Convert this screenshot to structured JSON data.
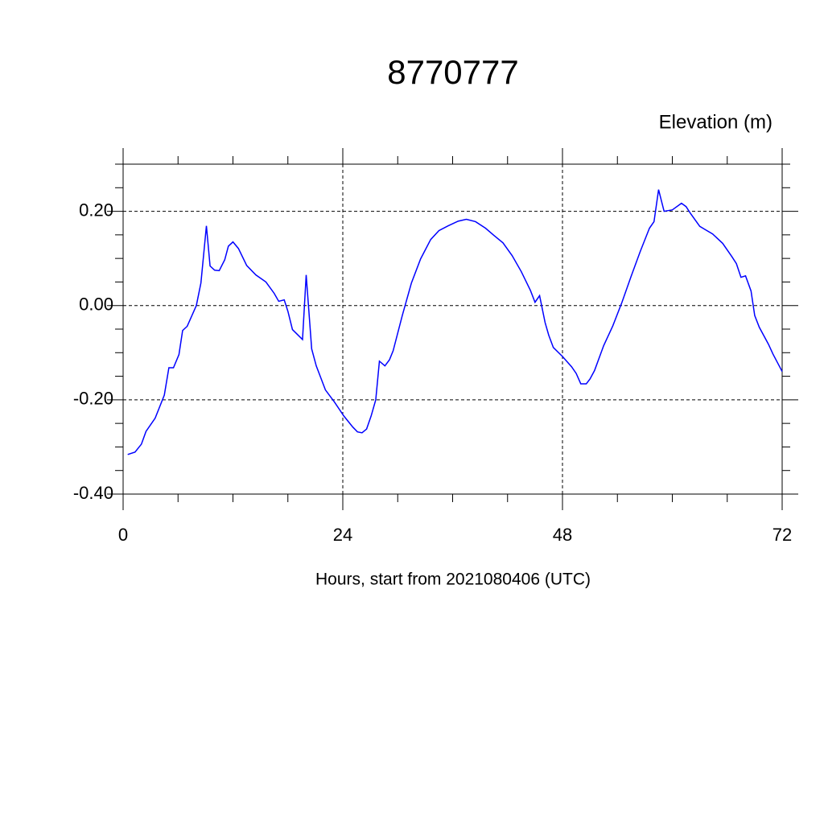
{
  "chart_data": {
    "type": "line",
    "title": "8770777",
    "ylabel": "Elevation (m)",
    "xlabel": "Hours, start from 2021080406 (UTC)",
    "color": "#0000ff",
    "grid": true,
    "xlim": [
      0,
      72
    ],
    "ylim": [
      -0.4,
      0.3
    ],
    "xticks": [
      0,
      24,
      48,
      72
    ],
    "xminorticks": [
      6,
      12,
      18,
      30,
      36,
      42,
      54,
      60,
      66
    ],
    "yticks": [
      {
        "value": -0.4,
        "label": "-0.40"
      },
      {
        "value": -0.2,
        "label": "-0.20"
      },
      {
        "value": 0,
        "label": "0.00"
      },
      {
        "value": 0.2,
        "label": "0.20"
      }
    ],
    "yminorticks": [
      -0.35,
      -0.3,
      -0.25,
      -0.15,
      -0.1,
      -0.05,
      0.05,
      0.1,
      0.15,
      0.25,
      0.3
    ],
    "x": [
      0.5,
      1.3,
      2.0,
      2.5,
      3.5,
      4.5,
      5.0,
      5.5,
      6.1,
      6.5,
      7.0,
      8.0,
      8.5,
      9.1,
      9.5,
      10.0,
      10.5,
      11.1,
      11.5,
      12.0,
      12.6,
      13.5,
      14.5,
      15.6,
      16.5,
      17.0,
      17.6,
      18.0,
      18.5,
      19.6,
      20.0,
      20.6,
      21.1,
      22.1,
      23.1,
      24.1,
      25.1,
      25.6,
      26.1,
      26.6,
      27.1,
      27.6,
      28.0,
      28.6,
      29.1,
      29.5,
      30.5,
      31.5,
      32.5,
      33.6,
      34.5,
      35.5,
      36.6,
      37.5,
      38.5,
      39.6,
      40.5,
      41.5,
      42.5,
      43.5,
      44.5,
      45.0,
      45.5,
      46.1,
      46.5,
      47.0,
      48.0,
      49.0,
      49.5,
      50.0,
      50.6,
      51.0,
      51.5,
      52.5,
      53.5,
      54.5,
      55.5,
      56.5,
      57.5,
      58.0,
      58.5,
      59.1,
      60.0,
      61.0,
      61.5,
      62.0,
      63.0,
      63.6,
      64.4,
      65.5,
      66.5,
      67.0,
      67.5,
      68.0,
      68.6,
      69.0,
      69.5,
      70.5,
      71.0,
      72.0
    ],
    "values": [
      -0.316,
      -0.311,
      -0.294,
      -0.267,
      -0.239,
      -0.19,
      -0.132,
      -0.132,
      -0.104,
      -0.053,
      -0.044,
      0.0,
      0.048,
      0.169,
      0.084,
      0.075,
      0.074,
      0.097,
      0.126,
      0.135,
      0.121,
      0.085,
      0.065,
      0.05,
      0.026,
      0.009,
      0.012,
      -0.012,
      -0.051,
      -0.072,
      0.065,
      -0.092,
      -0.128,
      -0.179,
      -0.205,
      -0.234,
      -0.258,
      -0.268,
      -0.27,
      -0.262,
      -0.234,
      -0.2,
      -0.118,
      -0.128,
      -0.115,
      -0.096,
      -0.021,
      0.048,
      0.099,
      0.14,
      0.159,
      0.169,
      0.179,
      0.183,
      0.178,
      0.164,
      0.149,
      0.133,
      0.106,
      0.072,
      0.032,
      0.007,
      0.021,
      -0.036,
      -0.063,
      -0.089,
      -0.108,
      -0.13,
      -0.144,
      -0.166,
      -0.166,
      -0.156,
      -0.138,
      -0.085,
      -0.043,
      0.007,
      0.062,
      0.115,
      0.164,
      0.178,
      0.246,
      0.2,
      0.203,
      0.217,
      0.21,
      0.195,
      0.168,
      0.161,
      0.152,
      0.132,
      0.104,
      0.089,
      0.06,
      0.063,
      0.031,
      -0.021,
      -0.046,
      -0.082,
      -0.103,
      -0.14
    ]
  }
}
